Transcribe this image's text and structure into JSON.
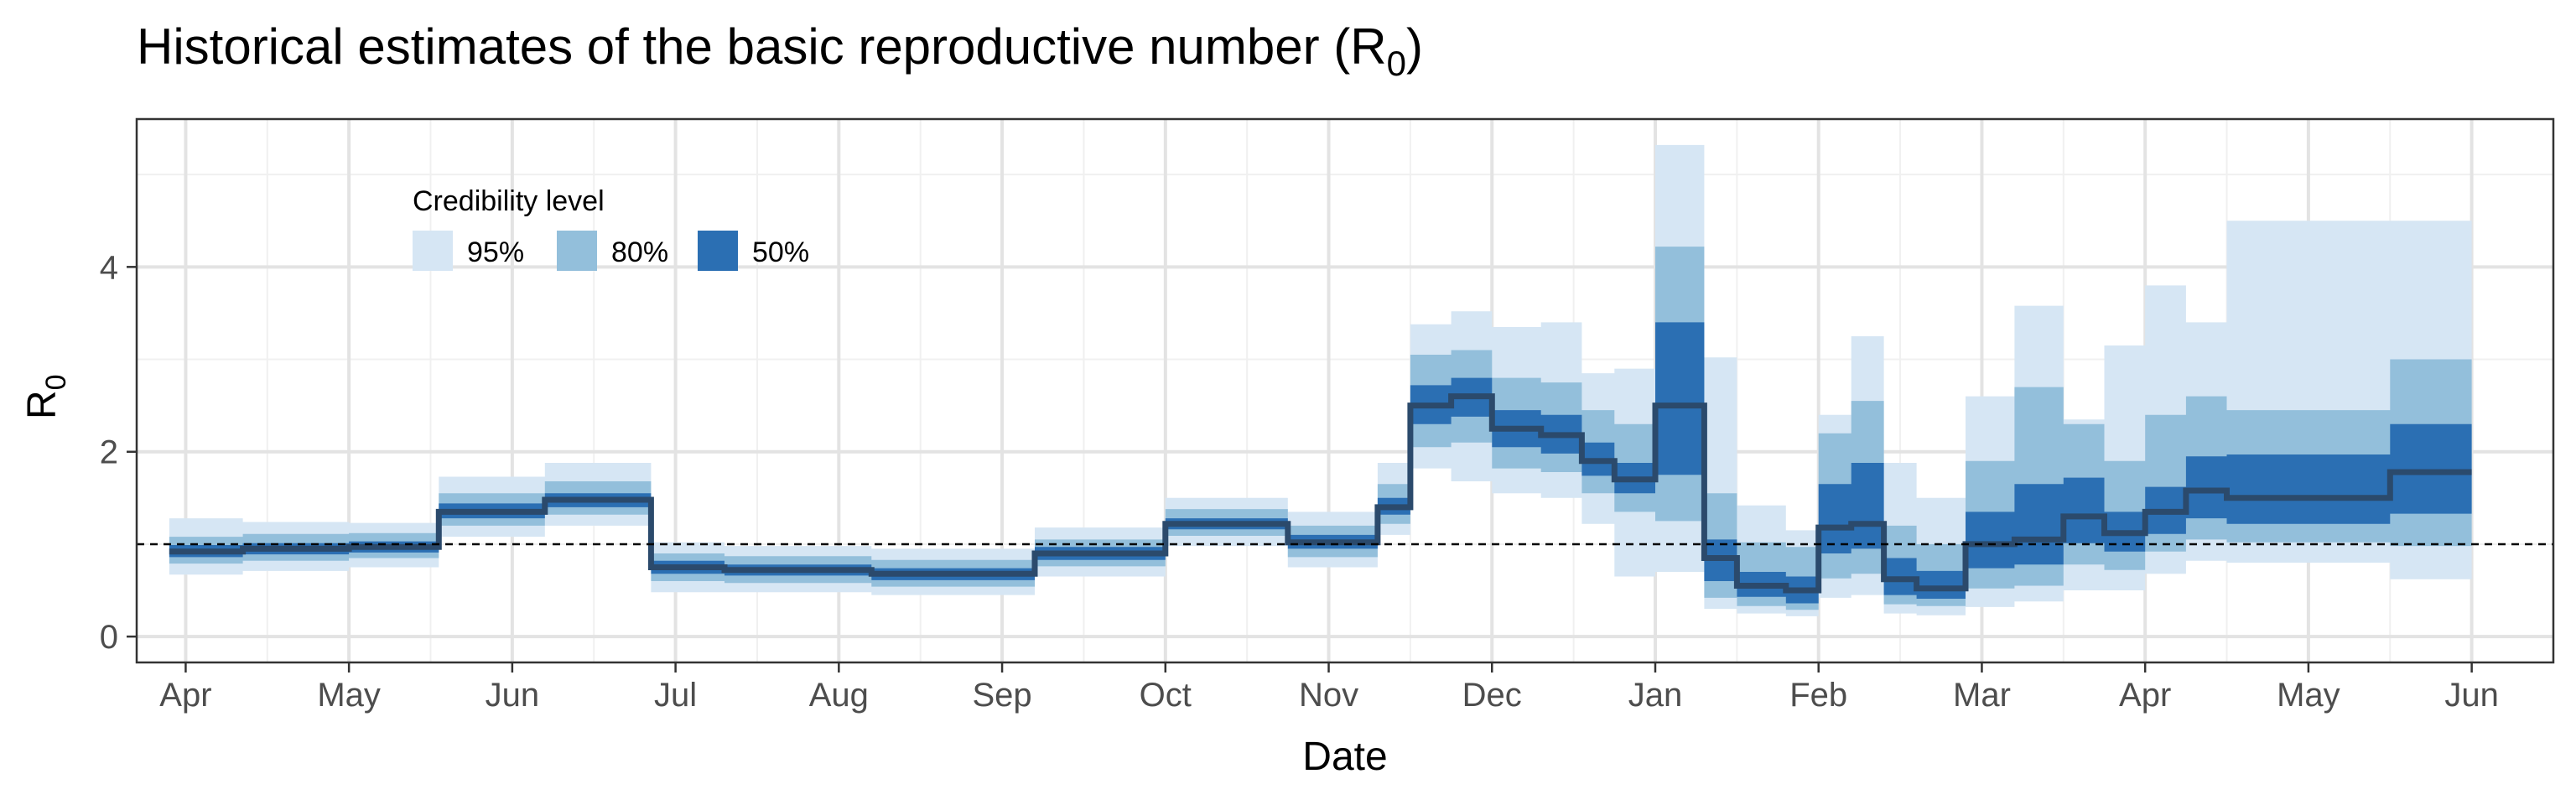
{
  "chart_data": {
    "type": "area",
    "title": "Historical estimates of the basic reproductive number (R",
    "title_subscript": "0",
    "title_suffix": ")",
    "xlabel": "Date",
    "ylabel": "R",
    "ylabel_subscript": "0",
    "x_ticks": [
      "Apr",
      "May",
      "Jun",
      "Jul",
      "Aug",
      "Sep",
      "Oct",
      "Nov",
      "Dec",
      "Jan",
      "Feb",
      "Mar",
      "Apr",
      "May",
      "Jun"
    ],
    "y_ticks": [
      "0",
      "2",
      "4"
    ],
    "xlim_months": [
      -0.3,
      14.5
    ],
    "ylim": [
      -0.28,
      5.6
    ],
    "reference_line": 1,
    "grid": true,
    "legend": {
      "title": "Credibility level",
      "placement": "top-left",
      "items": [
        {
          "label": "95%",
          "color": "#d6e6f4"
        },
        {
          "label": "80%",
          "color": "#93bfdb"
        },
        {
          "label": "50%",
          "color": "#2b6fb3"
        }
      ]
    },
    "colors": {
      "band95": "#d6e6f4",
      "band80": "#93bfdb",
      "band50": "#2b6fb3",
      "median": "#2b4a6c"
    },
    "x_unit": "months since Apr (first year)",
    "series": [
      {
        "x": [
          -0.1,
          0.35,
          1.0,
          1.55,
          2.2,
          2.85,
          3.3,
          4.2,
          5.2,
          6.0,
          6.75,
          7.3,
          7.5,
          7.75,
          8.0,
          8.3,
          8.55,
          8.75,
          9.0,
          9.3,
          9.5,
          9.8,
          10.0,
          10.2,
          10.4,
          10.6,
          10.9,
          11.2,
          11.5,
          11.75,
          12.0,
          12.25,
          12.5,
          13.5
        ],
        "median": [
          0.92,
          0.95,
          0.97,
          1.35,
          1.48,
          0.75,
          0.72,
          0.68,
          0.9,
          1.22,
          1.02,
          1.4,
          2.5,
          2.6,
          2.25,
          2.18,
          1.9,
          1.7,
          2.5,
          0.85,
          0.55,
          0.5,
          1.18,
          1.22,
          0.62,
          0.52,
          1.0,
          1.05,
          1.3,
          1.12,
          1.35,
          1.58,
          1.5,
          1.78
        ],
        "lo50": [
          0.86,
          0.89,
          0.91,
          1.28,
          1.4,
          0.68,
          0.66,
          0.61,
          0.83,
          1.16,
          0.95,
          1.32,
          2.3,
          2.38,
          2.05,
          1.98,
          1.74,
          1.55,
          1.75,
          0.6,
          0.43,
          0.36,
          0.9,
          0.95,
          0.45,
          0.41,
          0.74,
          0.78,
          1.01,
          0.92,
          1.11,
          1.28,
          1.22,
          1.33
        ],
        "hi50": [
          0.99,
          1.01,
          1.03,
          1.44,
          1.55,
          0.82,
          0.78,
          0.74,
          0.97,
          1.28,
          1.1,
          1.5,
          2.72,
          2.8,
          2.45,
          2.4,
          2.1,
          1.88,
          3.4,
          1.05,
          0.7,
          0.65,
          1.65,
          1.88,
          0.85,
          0.71,
          1.35,
          1.65,
          1.72,
          1.35,
          1.62,
          1.95,
          1.97,
          2.3
        ],
        "lo80": [
          0.79,
          0.82,
          0.85,
          1.2,
          1.32,
          0.6,
          0.58,
          0.54,
          0.76,
          1.09,
          0.86,
          1.22,
          2.05,
          2.1,
          1.82,
          1.78,
          1.55,
          1.35,
          1.25,
          0.42,
          0.33,
          0.29,
          0.63,
          0.68,
          0.35,
          0.33,
          0.52,
          0.55,
          0.78,
          0.72,
          0.92,
          1.05,
          1.02,
          0.98
        ],
        "hi80": [
          1.08,
          1.11,
          1.12,
          1.55,
          1.68,
          0.9,
          0.87,
          0.83,
          1.05,
          1.38,
          1.2,
          1.65,
          3.05,
          3.1,
          2.8,
          2.75,
          2.45,
          2.3,
          4.22,
          1.55,
          1.02,
          0.97,
          2.2,
          2.55,
          1.2,
          1.0,
          1.9,
          2.7,
          2.3,
          1.9,
          2.4,
          2.6,
          2.45,
          3.0
        ],
        "lo95": [
          0.67,
          0.71,
          0.75,
          1.08,
          1.2,
          0.48,
          0.48,
          0.45,
          0.65,
          0.98,
          0.75,
          1.1,
          1.82,
          1.68,
          1.55,
          1.5,
          1.22,
          0.65,
          0.7,
          0.3,
          0.25,
          0.22,
          0.42,
          0.45,
          0.25,
          0.23,
          0.32,
          0.38,
          0.5,
          0.5,
          0.68,
          0.82,
          0.8,
          0.62
        ],
        "hi95": [
          1.28,
          1.24,
          1.23,
          1.73,
          1.88,
          1.02,
          0.98,
          0.95,
          1.18,
          1.5,
          1.35,
          1.88,
          3.38,
          3.52,
          3.35,
          3.4,
          2.85,
          2.9,
          5.32,
          3.02,
          1.42,
          1.15,
          2.4,
          3.25,
          1.88,
          1.5,
          2.6,
          3.58,
          2.35,
          3.15,
          3.8,
          3.4,
          4.5,
          4.5
        ]
      }
    ],
    "x_end": 14.0
  }
}
